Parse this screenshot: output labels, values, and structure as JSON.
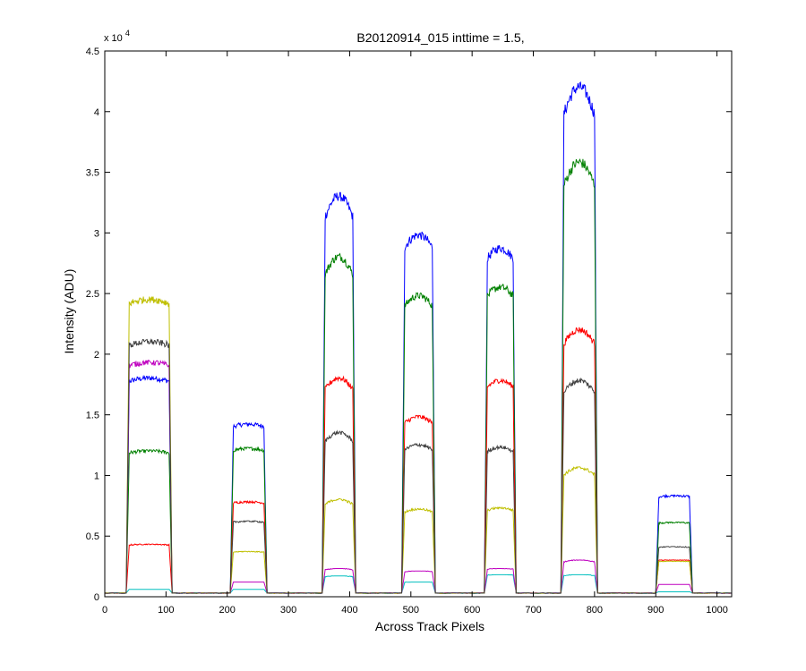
{
  "chart_data": {
    "type": "line",
    "title": "B20120914_015 inttime = 1.5,",
    "xlabel": "Across Track Pixels",
    "ylabel": "Intensity (ADU)",
    "xlim": [
      0,
      1024
    ],
    "ylim": [
      0,
      45000
    ],
    "y_exponent_label": "x 10",
    "y_exponent": "4",
    "x_ticks": [
      0,
      100,
      200,
      300,
      400,
      500,
      600,
      700,
      800,
      900,
      1000
    ],
    "x_tick_labels": [
      "0",
      "100",
      "200",
      "300",
      "400",
      "500",
      "600",
      "700",
      "800",
      "900",
      "1000"
    ],
    "y_ticks": [
      0,
      5000,
      10000,
      15000,
      20000,
      25000,
      30000,
      35000,
      40000,
      45000
    ],
    "y_tick_labels": [
      "0",
      "0.5",
      "1",
      "1.5",
      "2",
      "2.5",
      "3",
      "3.5",
      "4",
      "4.5"
    ],
    "grid": false,
    "baseline": 300,
    "segments": [
      {
        "x0": 35,
        "x1": 110
      },
      {
        "x0": 205,
        "x1": 265
      },
      {
        "x0": 355,
        "x1": 410
      },
      {
        "x0": 485,
        "x1": 540
      },
      {
        "x0": 620,
        "x1": 672
      },
      {
        "x0": 745,
        "x1": 805
      },
      {
        "x0": 900,
        "x1": 960
      }
    ],
    "series": [
      {
        "color": "#0000ff",
        "peaks": [
          18000,
          14200,
          33000,
          29800,
          28700,
          42000,
          8300
        ]
      },
      {
        "color": "#008000",
        "peaks": [
          12000,
          12200,
          28000,
          24800,
          25500,
          35800,
          6100
        ]
      },
      {
        "color": "#ff0000",
        "peaks": [
          4300,
          7800,
          18000,
          14800,
          17800,
          22000,
          3000
        ]
      },
      {
        "color": "#00bfbf",
        "peaks": [
          600,
          600,
          1700,
          1200,
          1800,
          1800,
          400
        ]
      },
      {
        "color": "#bf00bf",
        "peaks": [
          19300,
          1200,
          2300,
          2100,
          2300,
          3000,
          1000
        ]
      },
      {
        "color": "#bfbf00",
        "peaks": [
          24500,
          3700,
          8000,
          7200,
          7300,
          10600,
          2900
        ]
      },
      {
        "color": "#404040",
        "peaks": [
          21000,
          6200,
          13500,
          12500,
          12300,
          17800,
          4100
        ]
      }
    ]
  }
}
